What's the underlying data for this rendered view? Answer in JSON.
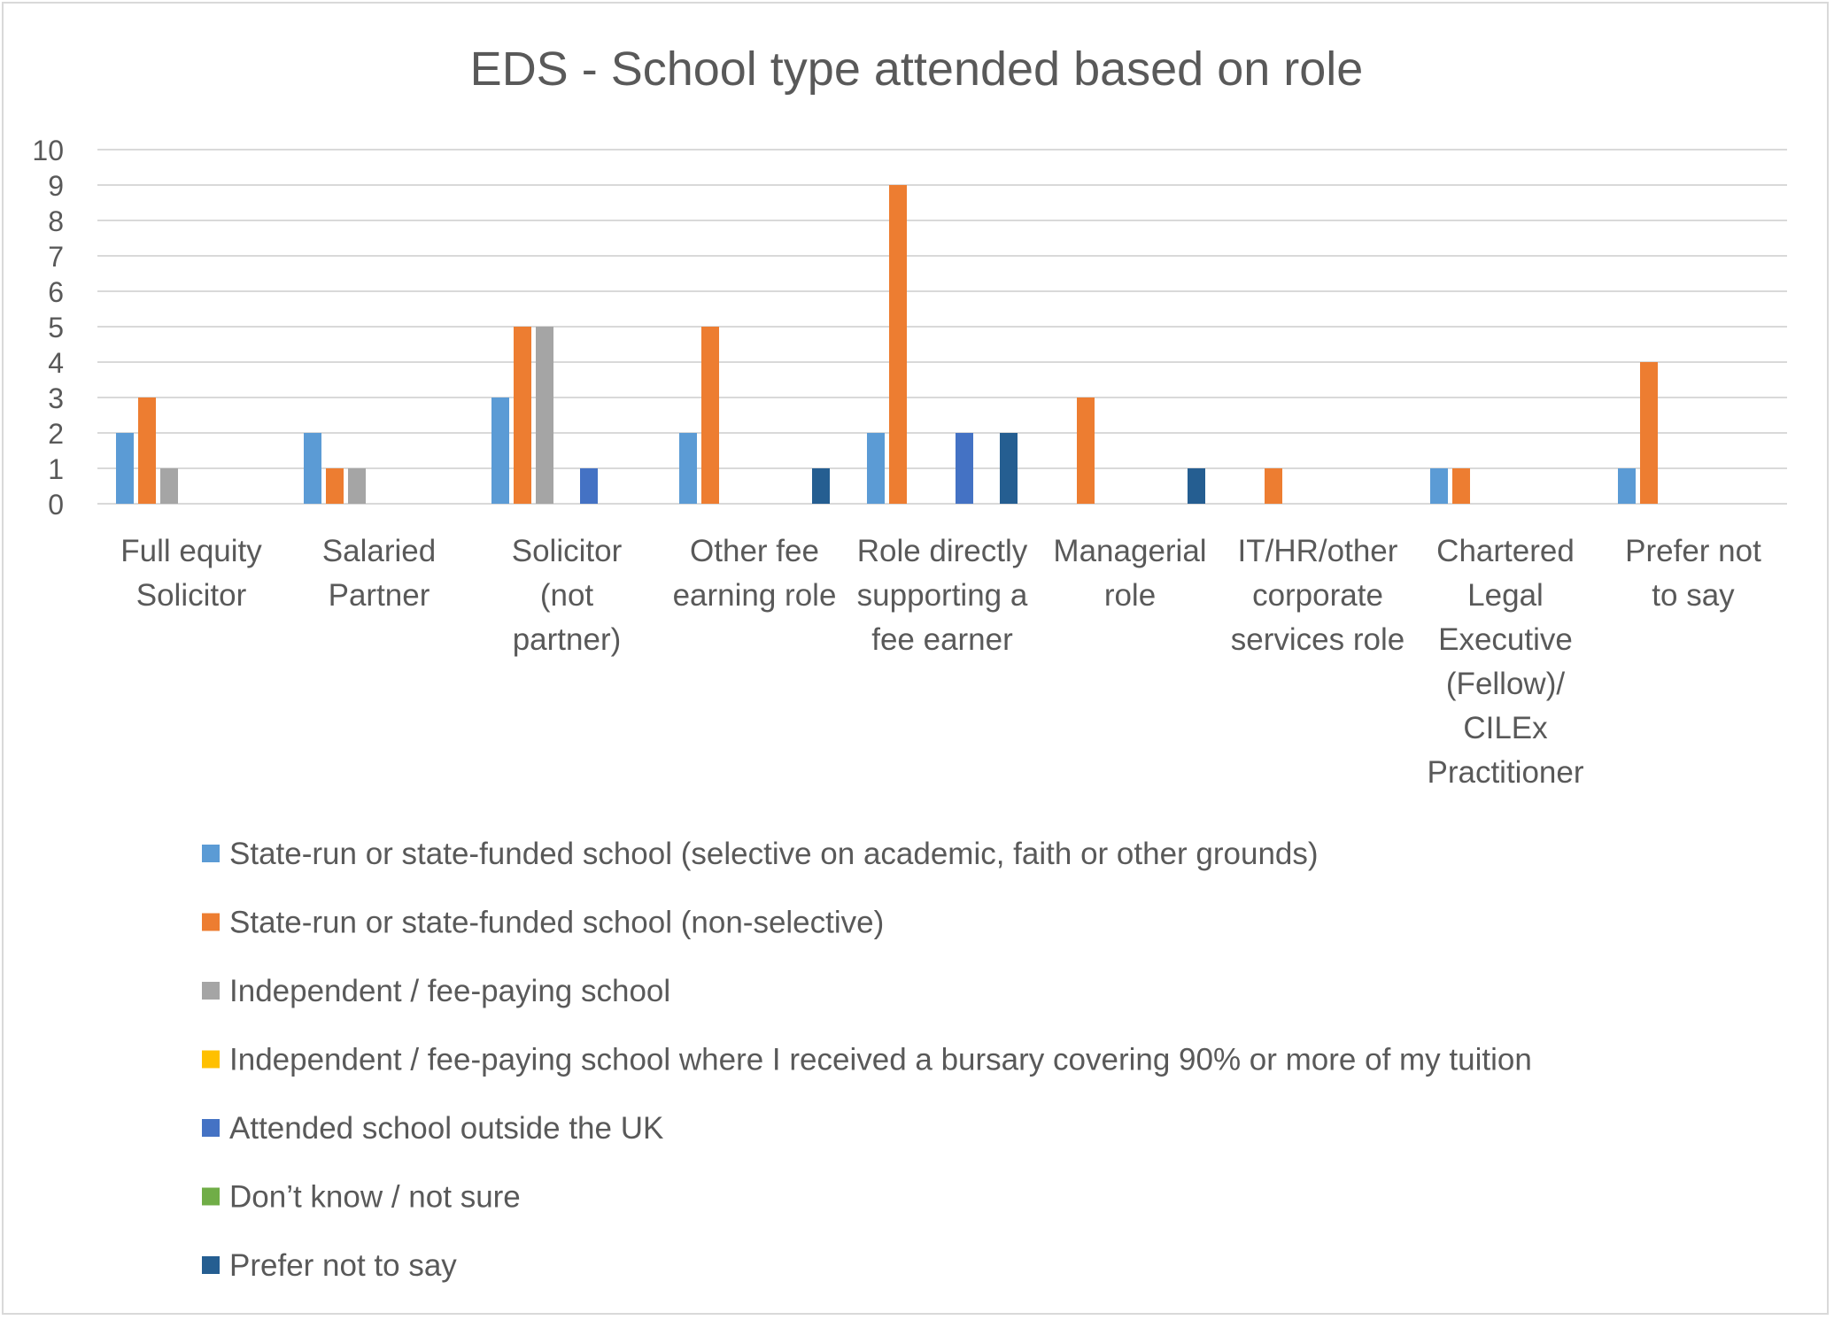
{
  "chart_data": {
    "type": "bar",
    "title": "EDS - School type attended based on role",
    "xlabel": "",
    "ylabel": "",
    "ylim": [
      0,
      10
    ],
    "yticks": [
      "0",
      "1",
      "2",
      "3",
      "4",
      "5",
      "6",
      "7",
      "8",
      "9",
      "10"
    ],
    "grid": true,
    "legend_position": "bottom",
    "categories": [
      [
        "Full equity",
        "Solicitor"
      ],
      [
        "Salaried",
        "Partner"
      ],
      [
        "Solicitor",
        "(not",
        "partner)"
      ],
      [
        "Other fee",
        "earning role"
      ],
      [
        "Role directly",
        "supporting a",
        "fee earner"
      ],
      [
        "Managerial",
        "role"
      ],
      [
        "IT/HR/other",
        "corporate",
        "services role"
      ],
      [
        "Chartered",
        "Legal",
        "Executive",
        "(Fellow)/",
        "CILEx",
        "Practitioner"
      ],
      [
        "Prefer not",
        "to say"
      ]
    ],
    "series": [
      {
        "name": "State-run or state-funded school (selective on academic, faith or other grounds)",
        "color": "#5b9bd5",
        "values": [
          2,
          2,
          3,
          2,
          2,
          0,
          0,
          1,
          1
        ]
      },
      {
        "name": "State-run or state-funded school (non-selective)",
        "color": "#ed7d31",
        "values": [
          3,
          1,
          5,
          5,
          9,
          3,
          1,
          1,
          4
        ]
      },
      {
        "name": "Independent / fee-paying school",
        "color": "#a5a5a5",
        "values": [
          1,
          1,
          5,
          0,
          0,
          0,
          0,
          0,
          0
        ]
      },
      {
        "name": "Independent / fee-paying school where I received a bursary covering 90% or more of my tuition",
        "color": "#ffc000",
        "values": [
          0,
          0,
          0,
          0,
          0,
          0,
          0,
          0,
          0
        ]
      },
      {
        "name": "Attended school outside the UK",
        "color": "#4472c4",
        "values": [
          0,
          0,
          1,
          0,
          2,
          0,
          0,
          0,
          0
        ]
      },
      {
        "name": "Don’t know / not sure",
        "color": "#70ad47",
        "values": [
          0,
          0,
          0,
          0,
          0,
          0,
          0,
          0,
          0
        ]
      },
      {
        "name": "Prefer not to say",
        "color": "#255e91",
        "values": [
          0,
          0,
          0,
          1,
          2,
          1,
          0,
          0,
          0
        ]
      }
    ]
  }
}
